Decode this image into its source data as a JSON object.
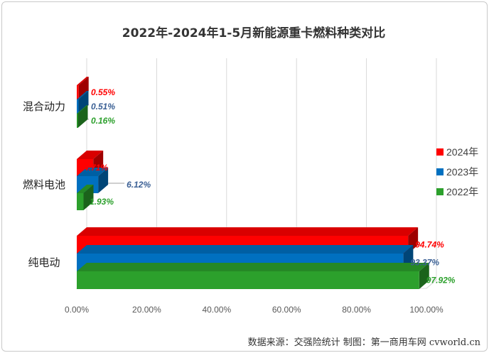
{
  "chart_data": {
    "type": "bar",
    "orientation": "horizontal",
    "style": "3d",
    "title": "2022年-2024年1-5月新能源重卡燃料种类对比",
    "categories": [
      "混合动力",
      "燃料电池",
      "纯电动"
    ],
    "series": [
      {
        "name": "2024年",
        "color": "#ff0000",
        "values": [
          0.55,
          4.71,
          94.74
        ],
        "labels": [
          "0.55%",
          "4.71%",
          "94.74%"
        ]
      },
      {
        "name": "2023年",
        "color": "#0070c0",
        "values": [
          0.51,
          6.12,
          93.37
        ],
        "labels": [
          "0.51%",
          "6.12%",
          "93.37%"
        ]
      },
      {
        "name": "2022年",
        "color": "#2ca02c",
        "values": [
          0.16,
          1.93,
          97.92
        ],
        "labels": [
          "0.16%",
          "1.93%",
          "97.92%"
        ]
      }
    ],
    "xlim": [
      0,
      100
    ],
    "x_ticks": [
      "0.00%",
      "20.00%",
      "40.00%",
      "60.00%",
      "80.00%",
      "100.00%"
    ],
    "grid": true,
    "legend_position": "right"
  },
  "source_note": "数据来源：交强险统计 制图：第一商用车网 cvworld.cn"
}
